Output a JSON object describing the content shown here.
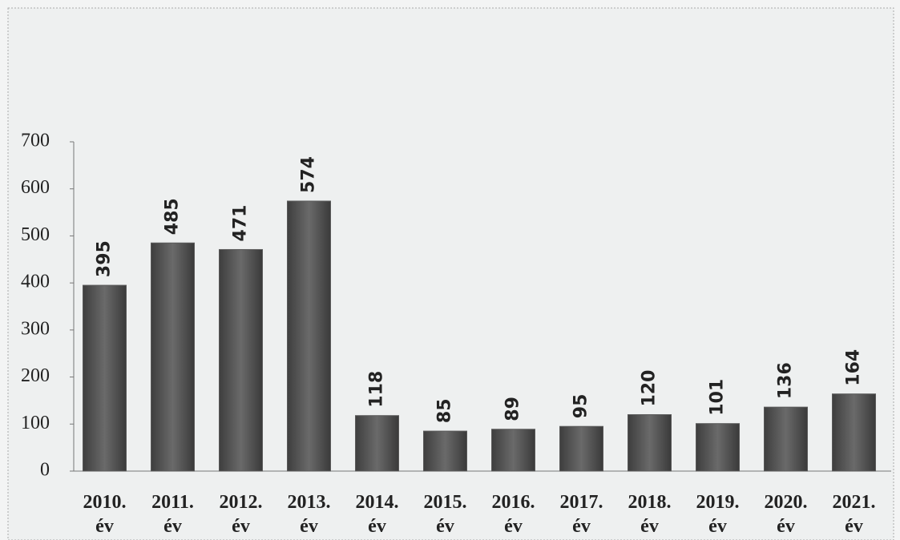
{
  "chart_data": {
    "type": "bar",
    "categories": [
      "2010. év",
      "2011. év",
      "2012. év",
      "2013. év",
      "2014. év",
      "2015. év",
      "2016. év",
      "2017. év",
      "2018. év",
      "2019. év",
      "2020. év",
      "2021. év"
    ],
    "values": [
      395,
      485,
      471,
      574,
      118,
      85,
      89,
      95,
      120,
      101,
      136,
      164
    ],
    "color": "#5a5a5a",
    "ylim": [
      0,
      700
    ],
    "yticks": [
      0,
      100,
      200,
      300,
      400,
      500,
      600,
      700
    ],
    "grid": false
  }
}
